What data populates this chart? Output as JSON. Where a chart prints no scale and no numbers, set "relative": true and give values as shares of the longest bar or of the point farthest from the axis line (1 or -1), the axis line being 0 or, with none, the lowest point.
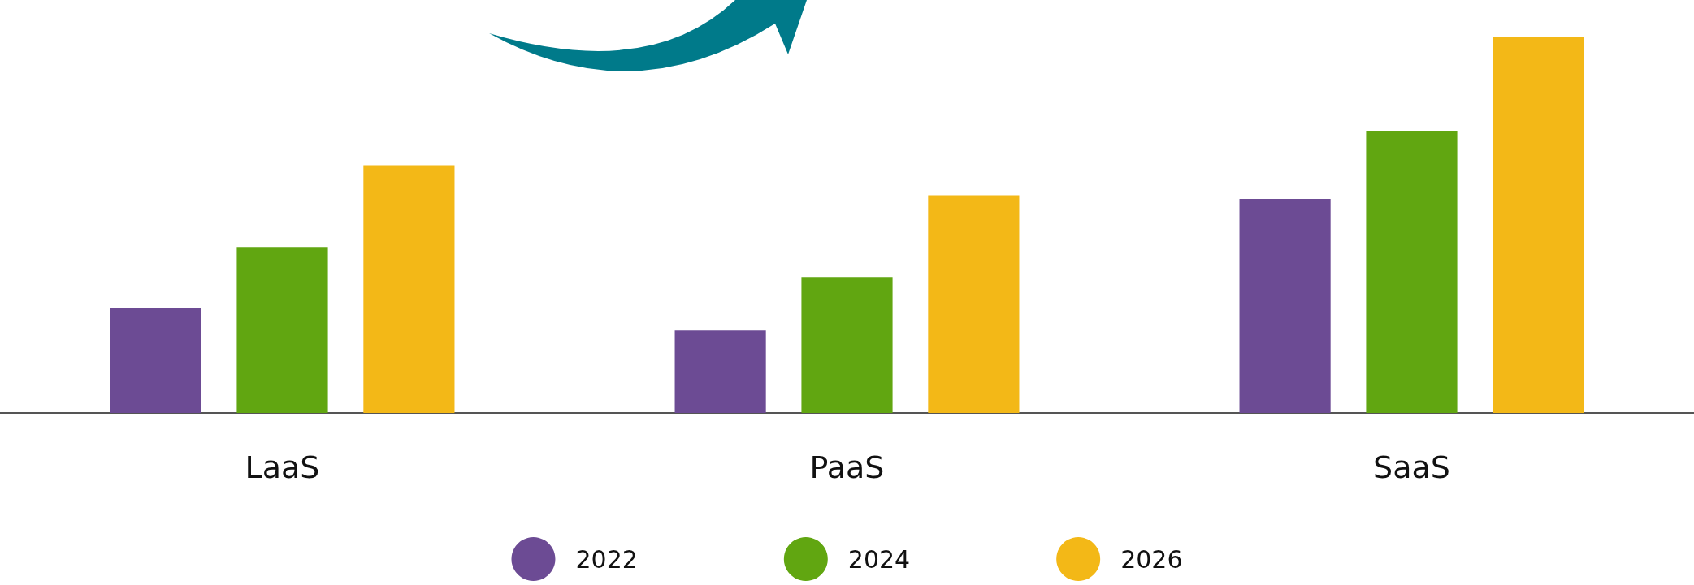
{
  "chart_data": {
    "type": "bar",
    "relative": true,
    "categories": [
      "LaaS",
      "PaaS",
      "SaaS"
    ],
    "series": [
      {
        "name": "2022",
        "color": "#6c4b94",
        "values": [
          0.28,
          0.22,
          0.57
        ]
      },
      {
        "name": "2024",
        "color": "#61a611",
        "values": [
          0.44,
          0.36,
          0.75
        ]
      },
      {
        "name": "2026",
        "color": "#f3b817",
        "values": [
          0.66,
          0.58,
          1
        ]
      }
    ],
    "legend": "bottom"
  }
}
